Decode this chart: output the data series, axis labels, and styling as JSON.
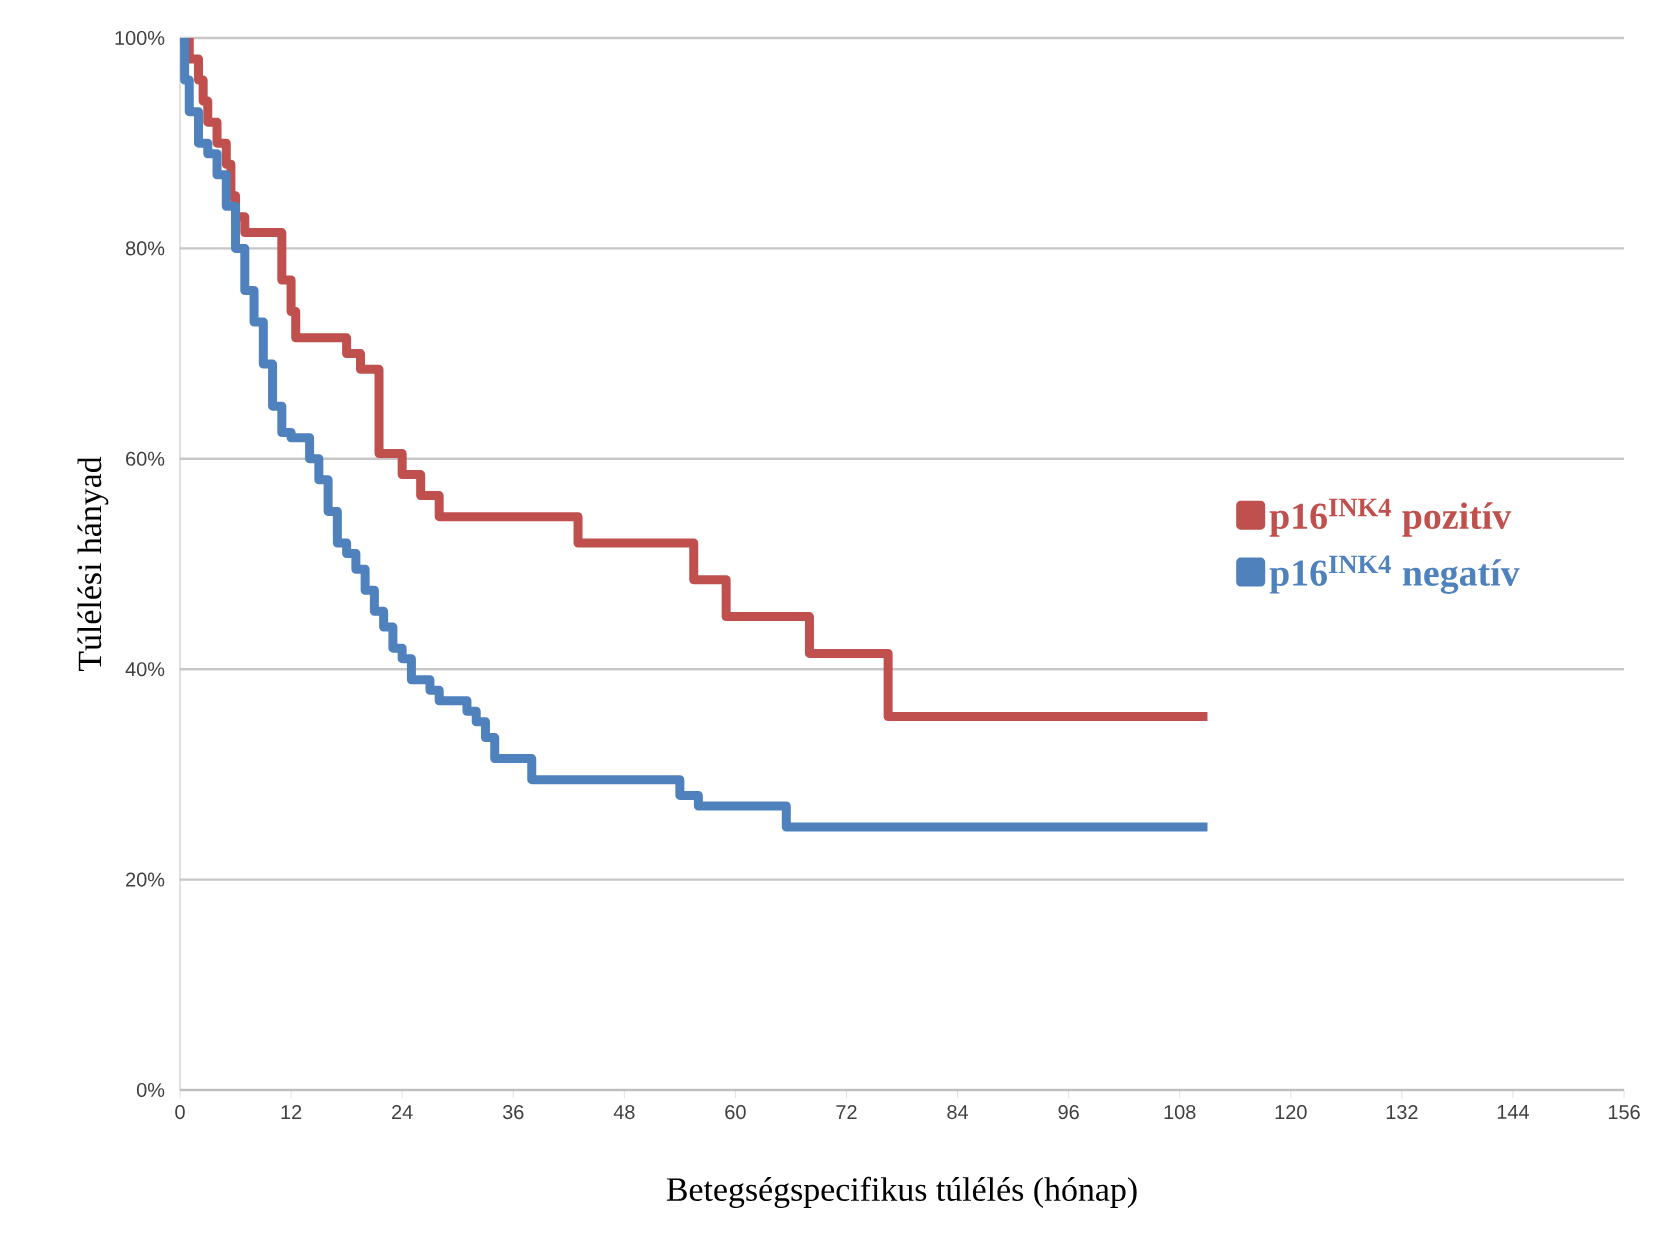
{
  "chart_data": {
    "type": "step",
    "xlabel": "Betegségspecifikus túlélés (hónap)",
    "ylabel": "Túlélési hányad",
    "xlim": [
      0,
      156
    ],
    "xticks": [
      0,
      12,
      24,
      36,
      48,
      60,
      72,
      84,
      96,
      108,
      120,
      132,
      144,
      156
    ],
    "ylim": [
      0,
      100
    ],
    "yticks": [
      {
        "value": 0,
        "label": "0%"
      },
      {
        "value": 20,
        "label": "20%"
      },
      {
        "value": 40,
        "label": "40%"
      },
      {
        "value": 60,
        "label": "60%"
      },
      {
        "value": 80,
        "label": "80%"
      },
      {
        "value": 100,
        "label": "100%"
      }
    ],
    "grid": "y",
    "legend": "right",
    "marker": "none",
    "line_style": "solid",
    "series": [
      {
        "name": "p16$^{INK4}$ pozitív",
        "color": "#c0504d",
        "x": [
          0,
          1,
          2,
          2.5,
          3,
          4,
          5,
          5.5,
          6,
          7,
          9,
          11,
          12,
          12.5,
          18,
          19.5,
          21,
          21.5,
          24,
          26,
          28,
          43,
          55.5,
          59,
          68,
          76.5,
          111
        ],
        "values": [
          100,
          98,
          96,
          94,
          92,
          90,
          88,
          85,
          83,
          81.5,
          81.5,
          77,
          74,
          71.5,
          70,
          68.5,
          68.5,
          60.5,
          58.5,
          56.5,
          54.5,
          52,
          48.5,
          45,
          41.5,
          35.5,
          35.5
        ]
      },
      {
        "name": "p16$^{INK4}$ negatív",
        "color": "#4f81bd",
        "x": [
          0,
          0.5,
          1,
          2,
          3,
          4,
          5,
          6,
          7,
          8,
          9,
          10,
          11,
          12,
          14,
          15,
          16,
          17,
          18,
          19,
          20,
          21,
          22,
          23,
          24,
          25,
          27,
          28,
          31,
          32,
          33,
          34,
          38,
          54,
          56,
          65.5,
          111
        ],
        "values": [
          100,
          96,
          93,
          90,
          89,
          87,
          84,
          80,
          76,
          73,
          69,
          65,
          62.5,
          62,
          60,
          58,
          55,
          52,
          51,
          49.5,
          47.5,
          45.5,
          44,
          42,
          41,
          39,
          38,
          37,
          36,
          35,
          33.5,
          31.5,
          29.5,
          28,
          27,
          25,
          25
        ]
      }
    ]
  }
}
